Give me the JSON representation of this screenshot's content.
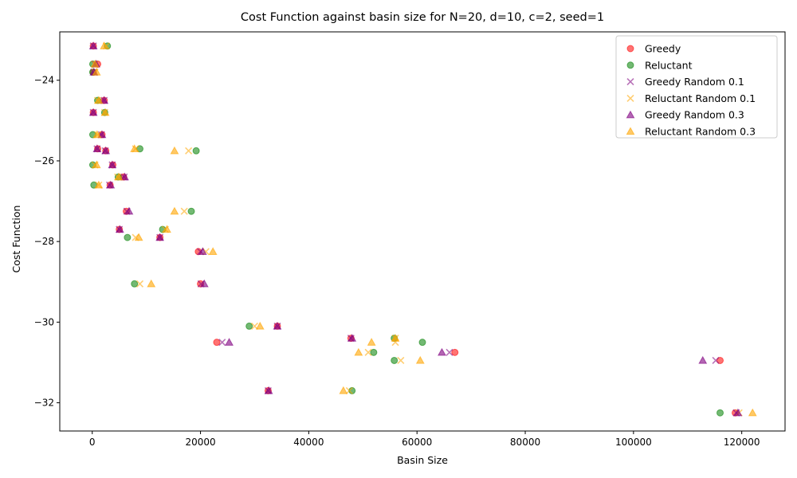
{
  "chart_data": {
    "type": "scatter",
    "title": "Cost Function against basin size for N=20, d=10, c=2, seed=1",
    "xlabel": "Basin Size",
    "ylabel": "Cost Function",
    "xlim": [
      -6000,
      128000
    ],
    "ylim": [
      -32.7,
      -22.8
    ],
    "xticks": [
      0,
      20000,
      40000,
      60000,
      80000,
      100000,
      120000
    ],
    "xtick_labels": [
      "0",
      "20000",
      "40000",
      "60000",
      "80000",
      "100000",
      "120000"
    ],
    "yticks": [
      -32,
      -30,
      -28,
      -26,
      -24
    ],
    "ytick_labels": [
      "−32",
      "−30",
      "−28",
      "−26",
      "−24"
    ],
    "grid": false,
    "legend_position": "top-right",
    "series": [
      {
        "name": "Greedy",
        "marker": "circle",
        "color": "#ff0000",
        "points": [
          [
            200,
            -23.15
          ],
          [
            1000,
            -23.6
          ],
          [
            200,
            -23.8
          ],
          [
            2200,
            -24.5
          ],
          [
            200,
            -24.8
          ],
          [
            1800,
            -25.35
          ],
          [
            1000,
            -25.7
          ],
          [
            2500,
            -25.75
          ],
          [
            3800,
            -26.1
          ],
          [
            5800,
            -26.4
          ],
          [
            3300,
            -26.6
          ],
          [
            6300,
            -27.25
          ],
          [
            5000,
            -27.7
          ],
          [
            12500,
            -27.9
          ],
          [
            19600,
            -28.25
          ],
          [
            20000,
            -29.05
          ],
          [
            34200,
            -30.1
          ],
          [
            23000,
            -30.5
          ],
          [
            47800,
            -30.4
          ],
          [
            67000,
            -30.75
          ],
          [
            116000,
            -30.95
          ],
          [
            32500,
            -31.7
          ],
          [
            118800,
            -32.25
          ]
        ]
      },
      {
        "name": "Reluctant",
        "marker": "circle",
        "color": "#008000",
        "points": [
          [
            2800,
            -23.15
          ],
          [
            100,
            -23.6
          ],
          [
            100,
            -23.8
          ],
          [
            1000,
            -24.5
          ],
          [
            2300,
            -24.8
          ],
          [
            100,
            -25.35
          ],
          [
            8800,
            -25.7
          ],
          [
            19200,
            -25.75
          ],
          [
            100,
            -26.1
          ],
          [
            4800,
            -26.4
          ],
          [
            300,
            -26.6
          ],
          [
            18300,
            -27.25
          ],
          [
            13000,
            -27.7
          ],
          [
            6500,
            -27.9
          ],
          [
            7800,
            -29.05
          ],
          [
            29000,
            -30.1
          ],
          [
            55800,
            -30.4
          ],
          [
            61000,
            -30.5
          ],
          [
            52000,
            -30.75
          ],
          [
            55800,
            -30.95
          ],
          [
            48000,
            -31.7
          ],
          [
            116000,
            -32.25
          ]
        ]
      },
      {
        "name": "Greedy Random 0.1",
        "marker": "x",
        "color": "#800080",
        "points": [
          [
            200,
            -23.15
          ],
          [
            500,
            -23.6
          ],
          [
            300,
            -23.8
          ],
          [
            2200,
            -24.5
          ],
          [
            200,
            -24.8
          ],
          [
            1700,
            -25.35
          ],
          [
            900,
            -25.7
          ],
          [
            2400,
            -25.75
          ],
          [
            3700,
            -26.1
          ],
          [
            5900,
            -26.4
          ],
          [
            3200,
            -26.6
          ],
          [
            6400,
            -27.25
          ],
          [
            5000,
            -27.7
          ],
          [
            12500,
            -27.9
          ],
          [
            20000,
            -28.25
          ],
          [
            20100,
            -29.05
          ],
          [
            34200,
            -30.1
          ],
          [
            24000,
            -30.5
          ],
          [
            47800,
            -30.4
          ],
          [
            66000,
            -30.75
          ],
          [
            115200,
            -30.95
          ],
          [
            32500,
            -31.7
          ],
          [
            119000,
            -32.25
          ]
        ]
      },
      {
        "name": "Reluctant Random 0.1",
        "marker": "x",
        "color": "#ffa500",
        "points": [
          [
            2600,
            -23.15
          ],
          [
            500,
            -23.6
          ],
          [
            500,
            -23.8
          ],
          [
            1000,
            -24.5
          ],
          [
            2300,
            -24.8
          ],
          [
            1000,
            -25.35
          ],
          [
            8000,
            -25.7
          ],
          [
            17800,
            -25.75
          ],
          [
            500,
            -26.1
          ],
          [
            4700,
            -26.4
          ],
          [
            1200,
            -26.6
          ],
          [
            17000,
            -27.25
          ],
          [
            13500,
            -27.7
          ],
          [
            8000,
            -27.9
          ],
          [
            21000,
            -28.25
          ],
          [
            8800,
            -29.05
          ],
          [
            30000,
            -30.1
          ],
          [
            56000,
            -30.4
          ],
          [
            56000,
            -30.5
          ],
          [
            51000,
            -30.75
          ],
          [
            57000,
            -30.95
          ],
          [
            47500,
            -31.7
          ],
          [
            119500,
            -32.25
          ]
        ]
      },
      {
        "name": "Greedy Random 0.3",
        "marker": "triangle",
        "color": "#800080",
        "points": [
          [
            200,
            -23.15
          ],
          [
            700,
            -23.6
          ],
          [
            300,
            -23.8
          ],
          [
            2200,
            -24.5
          ],
          [
            200,
            -24.8
          ],
          [
            1800,
            -25.35
          ],
          [
            900,
            -25.7
          ],
          [
            2500,
            -25.75
          ],
          [
            3700,
            -26.1
          ],
          [
            6000,
            -26.4
          ],
          [
            3400,
            -26.6
          ],
          [
            6800,
            -27.25
          ],
          [
            5100,
            -27.7
          ],
          [
            12500,
            -27.9
          ],
          [
            20400,
            -28.25
          ],
          [
            20700,
            -29.05
          ],
          [
            34200,
            -30.1
          ],
          [
            25300,
            -30.5
          ],
          [
            48000,
            -30.4
          ],
          [
            64600,
            -30.75
          ],
          [
            112800,
            -30.95
          ],
          [
            32600,
            -31.7
          ],
          [
            119300,
            -32.25
          ]
        ]
      },
      {
        "name": "Reluctant Random 0.3",
        "marker": "triangle",
        "color": "#ffa500",
        "points": [
          [
            2200,
            -23.15
          ],
          [
            500,
            -23.6
          ],
          [
            800,
            -23.8
          ],
          [
            1200,
            -24.5
          ],
          [
            2400,
            -24.8
          ],
          [
            900,
            -25.35
          ],
          [
            7800,
            -25.7
          ],
          [
            15200,
            -25.75
          ],
          [
            800,
            -26.1
          ],
          [
            4900,
            -26.4
          ],
          [
            1200,
            -26.6
          ],
          [
            15200,
            -27.25
          ],
          [
            13800,
            -27.7
          ],
          [
            8600,
            -27.9
          ],
          [
            22300,
            -28.25
          ],
          [
            10900,
            -29.05
          ],
          [
            31000,
            -30.1
          ],
          [
            51600,
            -30.5
          ],
          [
            56000,
            -30.4
          ],
          [
            49200,
            -30.75
          ],
          [
            60600,
            -30.95
          ],
          [
            46400,
            -31.7
          ],
          [
            122000,
            -32.25
          ]
        ]
      }
    ]
  }
}
